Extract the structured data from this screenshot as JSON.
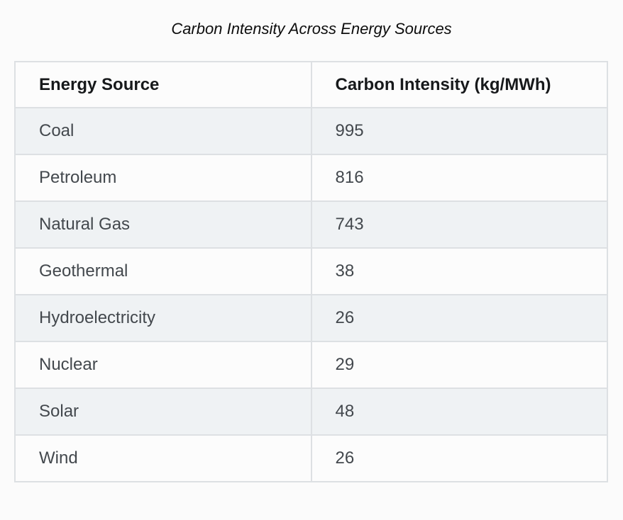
{
  "page": {
    "title": "Carbon Intensity Across Energy Sources"
  },
  "table": {
    "columns": [
      "Energy Source",
      "Carbon Intensity (kg/MWh)"
    ],
    "rows": [
      [
        "Coal",
        "995"
      ],
      [
        "Petroleum",
        "816"
      ],
      [
        "Natural Gas",
        "743"
      ],
      [
        "Geothermal",
        "38"
      ],
      [
        "Hydroelectricity",
        "26"
      ],
      [
        "Nuclear",
        "29"
      ],
      [
        "Solar",
        "48"
      ],
      [
        "Wind",
        "26"
      ]
    ]
  },
  "chart_data": {
    "type": "table",
    "title": "Carbon Intensity Across Energy Sources",
    "columns": [
      "Energy Source",
      "Carbon Intensity (kg/MWh)"
    ],
    "categories": [
      "Coal",
      "Petroleum",
      "Natural Gas",
      "Geothermal",
      "Hydroelectricity",
      "Nuclear",
      "Solar",
      "Wind"
    ],
    "values": [
      995,
      816,
      743,
      38,
      26,
      29,
      48,
      26
    ],
    "ylabel": "Carbon Intensity (kg/MWh)",
    "layout_hints": {
      "row_striping": true,
      "stripe_starts_on_first_data_row": true
    }
  },
  "colors": {
    "page_bg": "#fbfbfb",
    "row_white": "#fcfcfc",
    "row_stripe": "#eff2f4",
    "border": "#dde0e3",
    "header_text": "#17191b",
    "cell_text": "#43484d",
    "title_text": "#0d0d0d"
  }
}
